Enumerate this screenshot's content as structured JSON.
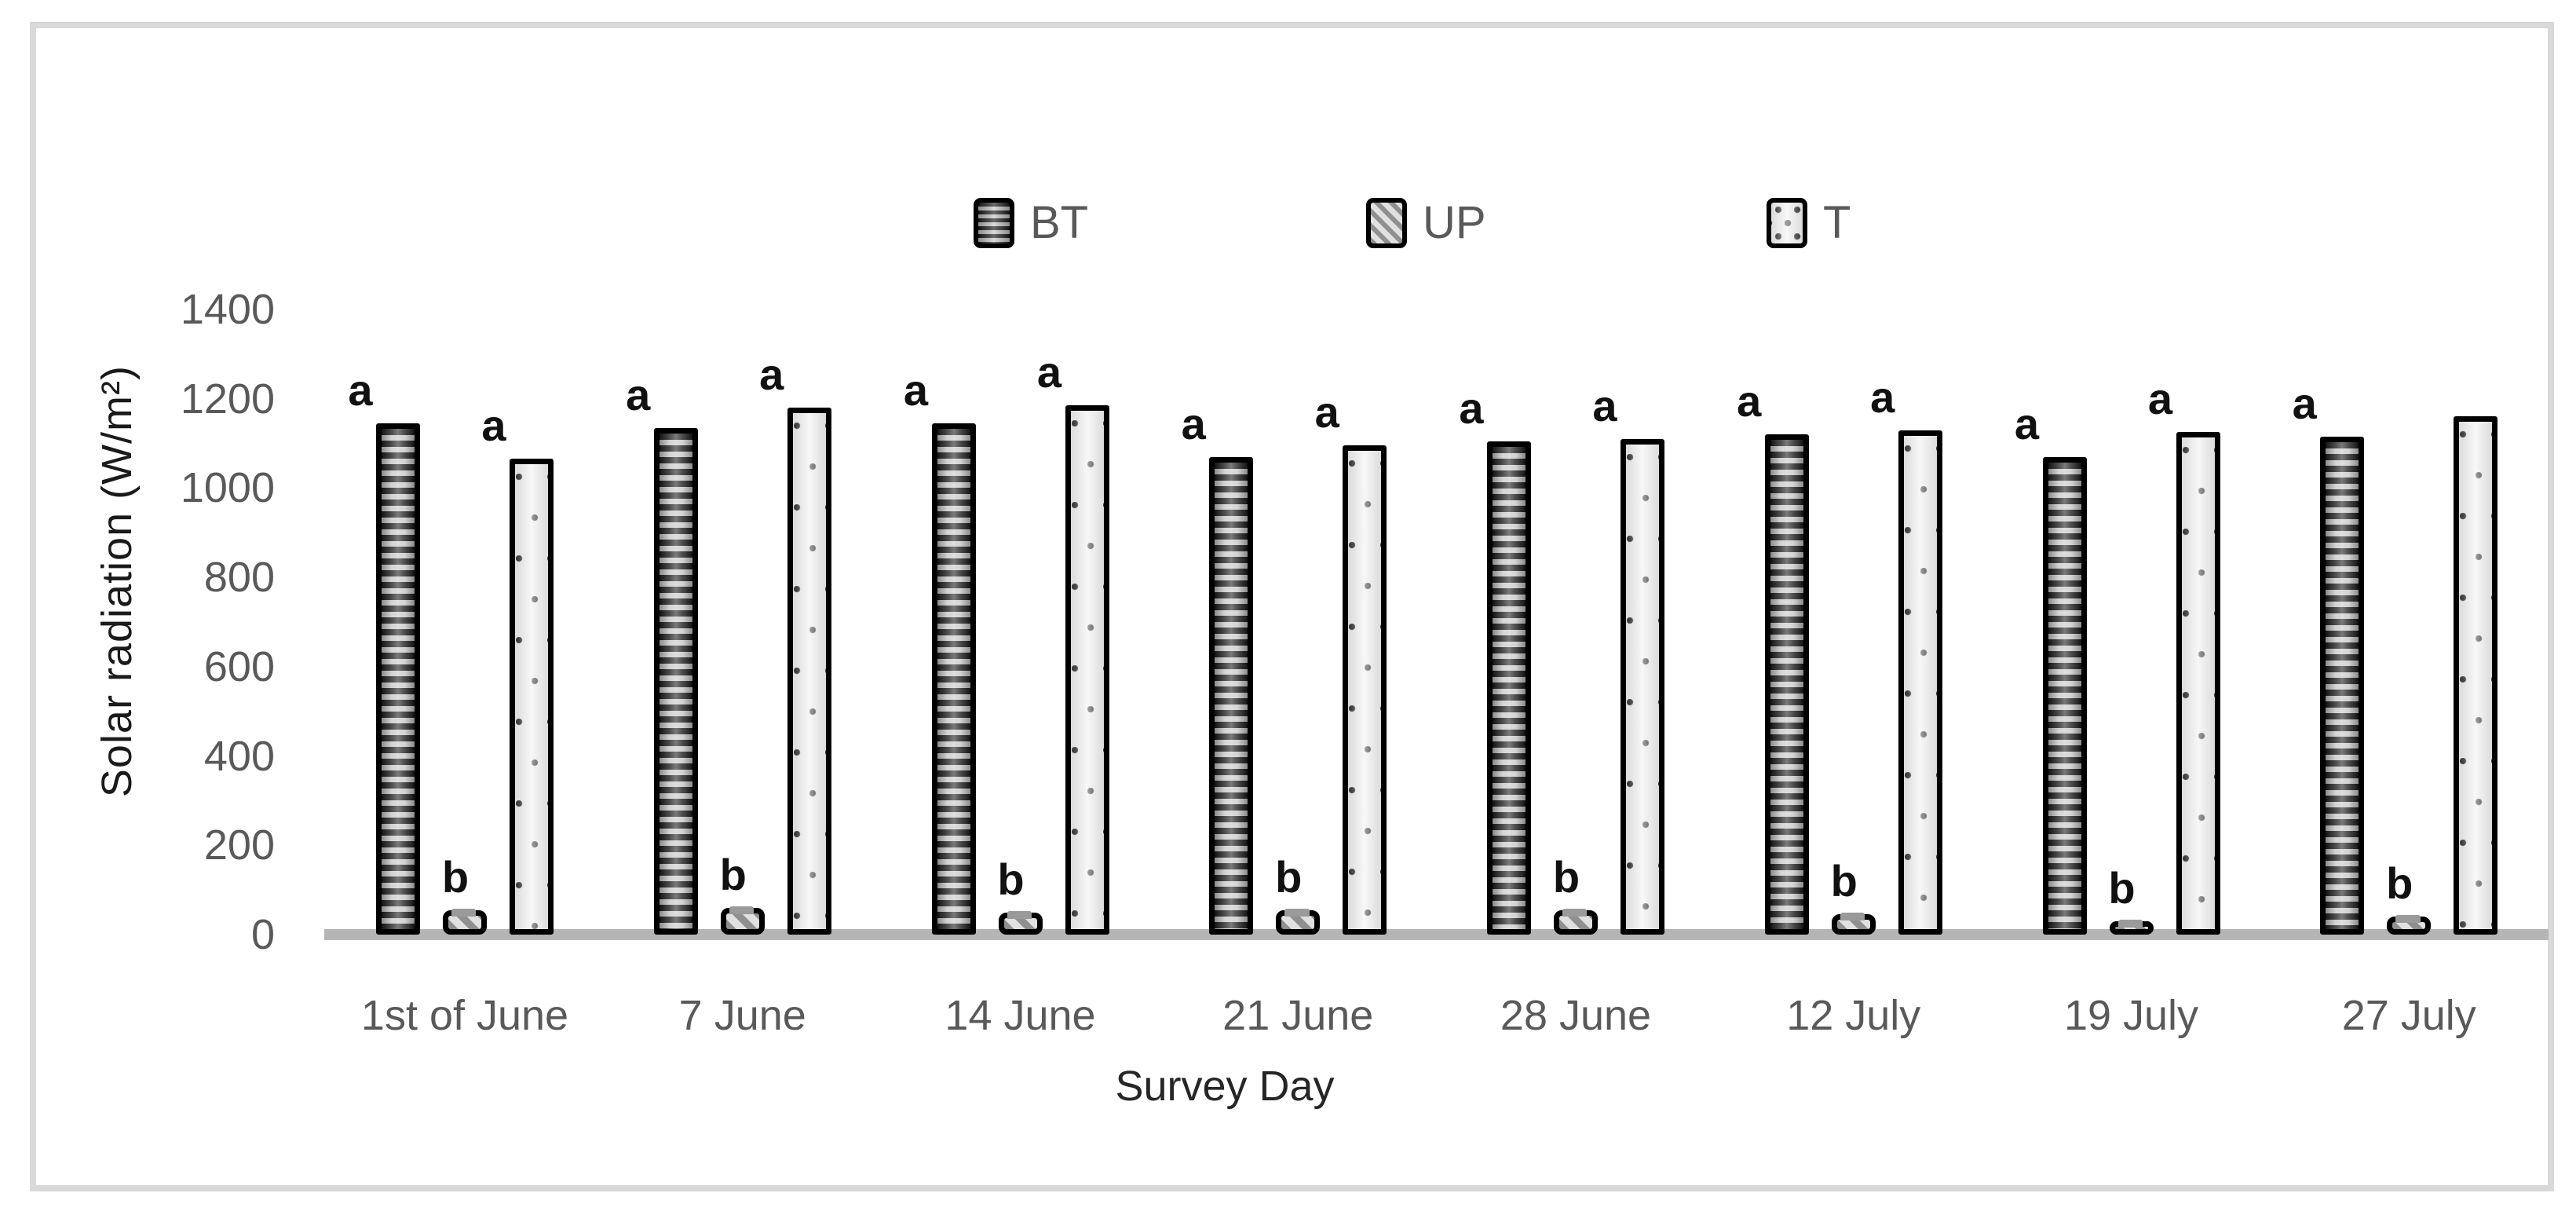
{
  "figure": {
    "background": "#ffffff",
    "frame_color": "#d9d9d9",
    "baseline_color": "#b5b5b5",
    "tick_text_color": "#595959",
    "title_text_color": "#262626",
    "significance_letter_color": "#111111",
    "bar_border_color": "#000000"
  },
  "chart_data": {
    "type": "bar",
    "title": "",
    "xlabel": "Survey Day",
    "ylabel": "Solar radiation (W/m²)",
    "ylim": [
      0,
      1400
    ],
    "ytick_step": 200,
    "yticks": [
      0,
      200,
      400,
      600,
      800,
      1000,
      1200,
      1400
    ],
    "grid": false,
    "legend_position": "top-center",
    "categories": [
      "1st of June",
      "7 June",
      "14 June",
      "21 June",
      "28 June",
      "12 July",
      "19 July",
      "27 July"
    ],
    "series": [
      {
        "name": "BT",
        "pattern": "horizontal-stripes",
        "values": [
          1145,
          1135,
          1145,
          1070,
          1105,
          1120,
          1070,
          1115
        ],
        "letters": [
          "a",
          "a",
          "a",
          "a",
          "a",
          "a",
          "a",
          "a"
        ]
      },
      {
        "name": "UP",
        "pattern": "diagonal-hatch",
        "values": [
          55,
          60,
          50,
          55,
          55,
          45,
          30,
          40
        ],
        "letters": [
          "b",
          "b",
          "b",
          "b",
          "b",
          "b",
          "b",
          "b"
        ]
      },
      {
        "name": "T",
        "pattern": "dotted",
        "values": [
          1065,
          1180,
          1185,
          1095,
          1110,
          1130,
          1125,
          1160
        ],
        "letters": [
          "a",
          "a",
          "a",
          "a",
          "a",
          "a",
          "a",
          ""
        ]
      }
    ]
  }
}
